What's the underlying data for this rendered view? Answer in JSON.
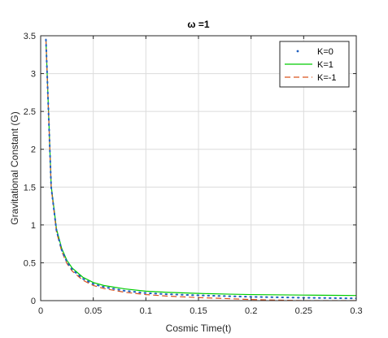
{
  "chart_data": {
    "type": "line",
    "title": "ω =1",
    "xlabel": "Cosmic Time(t)",
    "ylabel": "Gravitational Constant (G)",
    "xlim": [
      0,
      0.3
    ],
    "ylim": [
      0,
      3.5
    ],
    "xticks": [
      0,
      0.05,
      0.1,
      0.15,
      0.2,
      0.25,
      0.3
    ],
    "xtick_labels": [
      "0",
      "0.05",
      "0.1",
      "0.15",
      "0.2",
      "0.25",
      "0.3"
    ],
    "yticks": [
      0,
      0.5,
      1,
      1.5,
      2,
      2.5,
      3,
      3.5
    ],
    "ytick_labels": [
      "0",
      "0.5",
      "1",
      "1.5",
      "2",
      "2.5",
      "3",
      "3.5"
    ],
    "grid": true,
    "legend_position": "top-right",
    "series": [
      {
        "name": "K=0",
        "style": "dotted",
        "color": "#1f5fbf",
        "x": [
          0.005,
          0.01,
          0.015,
          0.02,
          0.025,
          0.03,
          0.04,
          0.05,
          0.06,
          0.08,
          0.1,
          0.12,
          0.15,
          0.18,
          0.2,
          0.22,
          0.25,
          0.28,
          0.3
        ],
        "y": [
          3.45,
          1.5,
          0.93,
          0.67,
          0.51,
          0.41,
          0.29,
          0.22,
          0.18,
          0.13,
          0.1,
          0.085,
          0.07,
          0.058,
          0.05,
          0.045,
          0.038,
          0.033,
          0.03
        ]
      },
      {
        "name": "K=1",
        "style": "solid",
        "color": "#00cc00",
        "x": [
          0.005,
          0.01,
          0.015,
          0.02,
          0.025,
          0.03,
          0.04,
          0.05,
          0.06,
          0.08,
          0.1,
          0.12,
          0.15,
          0.18,
          0.2,
          0.22,
          0.25,
          0.28,
          0.3
        ],
        "y": [
          3.45,
          1.52,
          0.95,
          0.69,
          0.53,
          0.43,
          0.31,
          0.24,
          0.2,
          0.155,
          0.125,
          0.11,
          0.095,
          0.085,
          0.08,
          0.077,
          0.073,
          0.07,
          0.068
        ]
      },
      {
        "name": "K=-1",
        "style": "dashed",
        "color": "#d9531e",
        "x": [
          0.005,
          0.01,
          0.015,
          0.02,
          0.025,
          0.03,
          0.04,
          0.05,
          0.06,
          0.08,
          0.1,
          0.12,
          0.15,
          0.18,
          0.2,
          0.22,
          0.25,
          0.28,
          0.3
        ],
        "y": [
          3.45,
          1.49,
          0.91,
          0.65,
          0.49,
          0.39,
          0.27,
          0.2,
          0.16,
          0.11,
          0.08,
          0.06,
          0.04,
          0.025,
          0.015,
          0.008,
          0.0,
          0.0,
          0.0
        ]
      }
    ]
  }
}
